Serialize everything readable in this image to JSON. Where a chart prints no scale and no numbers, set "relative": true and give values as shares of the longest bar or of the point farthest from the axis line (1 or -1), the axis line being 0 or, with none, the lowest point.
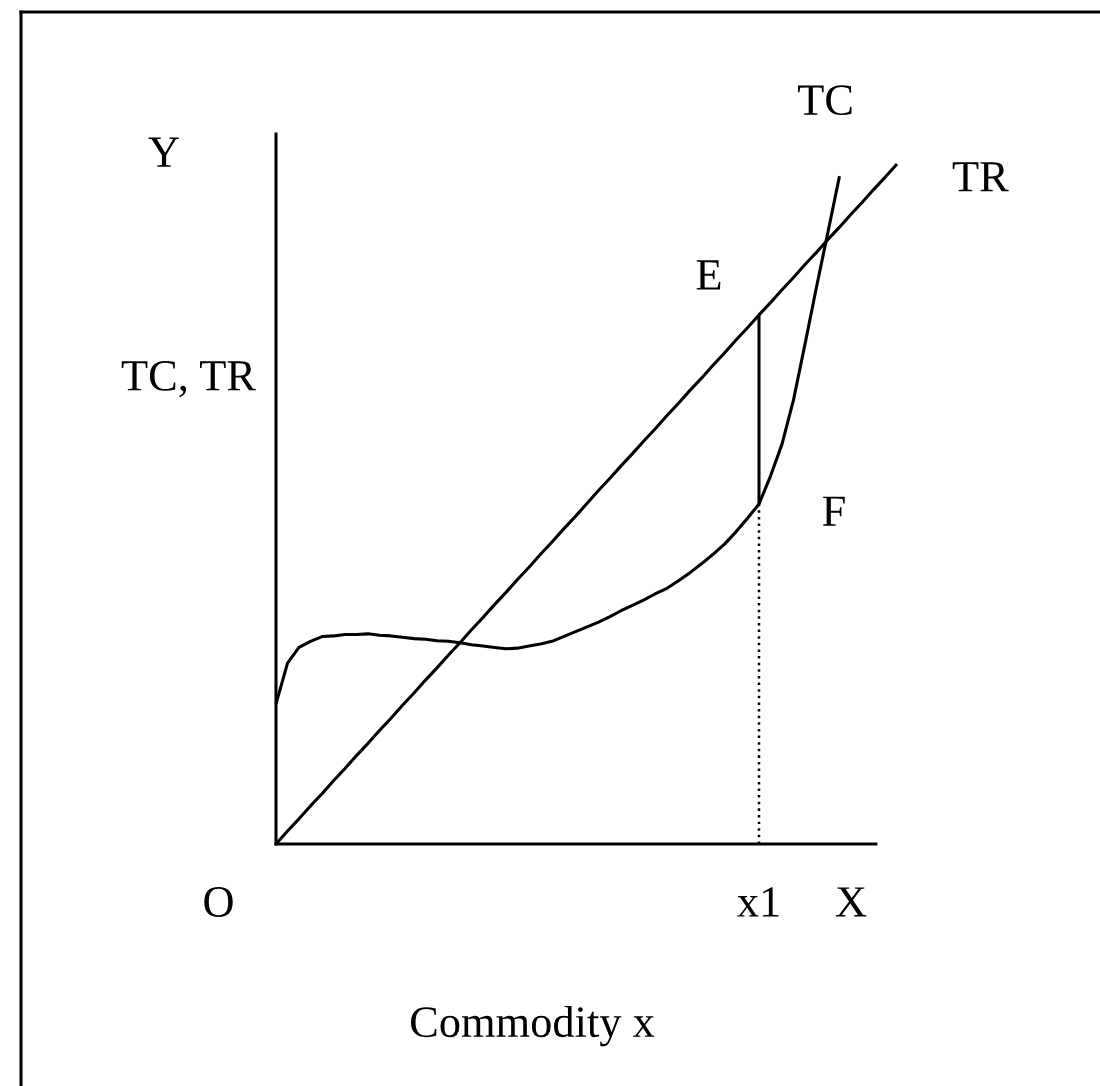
{
  "chart_data": {
    "type": "line",
    "relative": true,
    "xlabel": "Commodity x",
    "ylabel": "TC, TR",
    "categories": [
      "O",
      null,
      null,
      null,
      null,
      null,
      null,
      null,
      null,
      null,
      null,
      null,
      null,
      null,
      null,
      null,
      null,
      null,
      null,
      null,
      null,
      null,
      null,
      null,
      null,
      null,
      null,
      null,
      null,
      null,
      null,
      null,
      null,
      null,
      null,
      null,
      null,
      null,
      null,
      null,
      null,
      null,
      null,
      null,
      null,
      null,
      null,
      "x1",
      null,
      null,
      null,
      null,
      null,
      null,
      null,
      "X",
      null,
      null,
      null,
      null
    ],
    "series": [
      {
        "name": "TC",
        "color": "#000000",
        "values": [
          null,
          null,
          null,
          null,
          null,
          0.206,
          0.266,
          0.289,
          0.298,
          0.305,
          0.306,
          0.308,
          0.308,
          0.309,
          0.307,
          0.306,
          0.304,
          0.302,
          0.301,
          0.299,
          0.298,
          0.296,
          0.293,
          0.291,
          0.289,
          0.287,
          0.288,
          0.291,
          0.294,
          0.298,
          0.305,
          0.312,
          0.319,
          0.326,
          0.334,
          0.343,
          0.351,
          0.359,
          0.368,
          0.376,
          0.387,
          0.399,
          0.412,
          0.426,
          0.441,
          0.459,
          0.479,
          0.5,
          0.541,
          0.588,
          0.653,
          0.735,
          0.819,
          0.9,
          0.982,
          null,
          null,
          null,
          null,
          null
        ]
      },
      {
        "name": "TR",
        "color": "#000000",
        "values": [
          null,
          null,
          null,
          null,
          null,
          0,
          0.019,
          0.037,
          0.056,
          0.074,
          0.093,
          0.111,
          0.13,
          0.148,
          0.167,
          0.185,
          0.204,
          0.222,
          0.241,
          0.259,
          0.278,
          0.296,
          0.315,
          0.333,
          0.352,
          0.37,
          0.389,
          0.407,
          0.426,
          0.444,
          0.463,
          0.481,
          0.5,
          0.519,
          0.537,
          0.556,
          0.574,
          0.593,
          0.611,
          0.63,
          0.648,
          0.667,
          0.685,
          0.704,
          0.722,
          0.741,
          0.759,
          0.778,
          0.796,
          0.815,
          0.833,
          0.852,
          0.87,
          0.889,
          0.907,
          0.926,
          0.944,
          0.963,
          0.981,
          1
        ]
      },
      {
        "color": "#000000",
        "x": [
          "x1",
          "x1"
        ],
        "values": [
          0.5,
          0.778
        ]
      },
      {
        "color": "#000000",
        "line_style": "dotted",
        "x": [
          "x1",
          "x1"
        ],
        "values": [
          0,
          0.5
        ]
      }
    ],
    "annotations": [
      "Y",
      {
        "text": "E",
        "x": "x1",
        "y": 0.778
      },
      {
        "text": "F",
        "x": "x1",
        "y": 0.5
      }
    ]
  }
}
